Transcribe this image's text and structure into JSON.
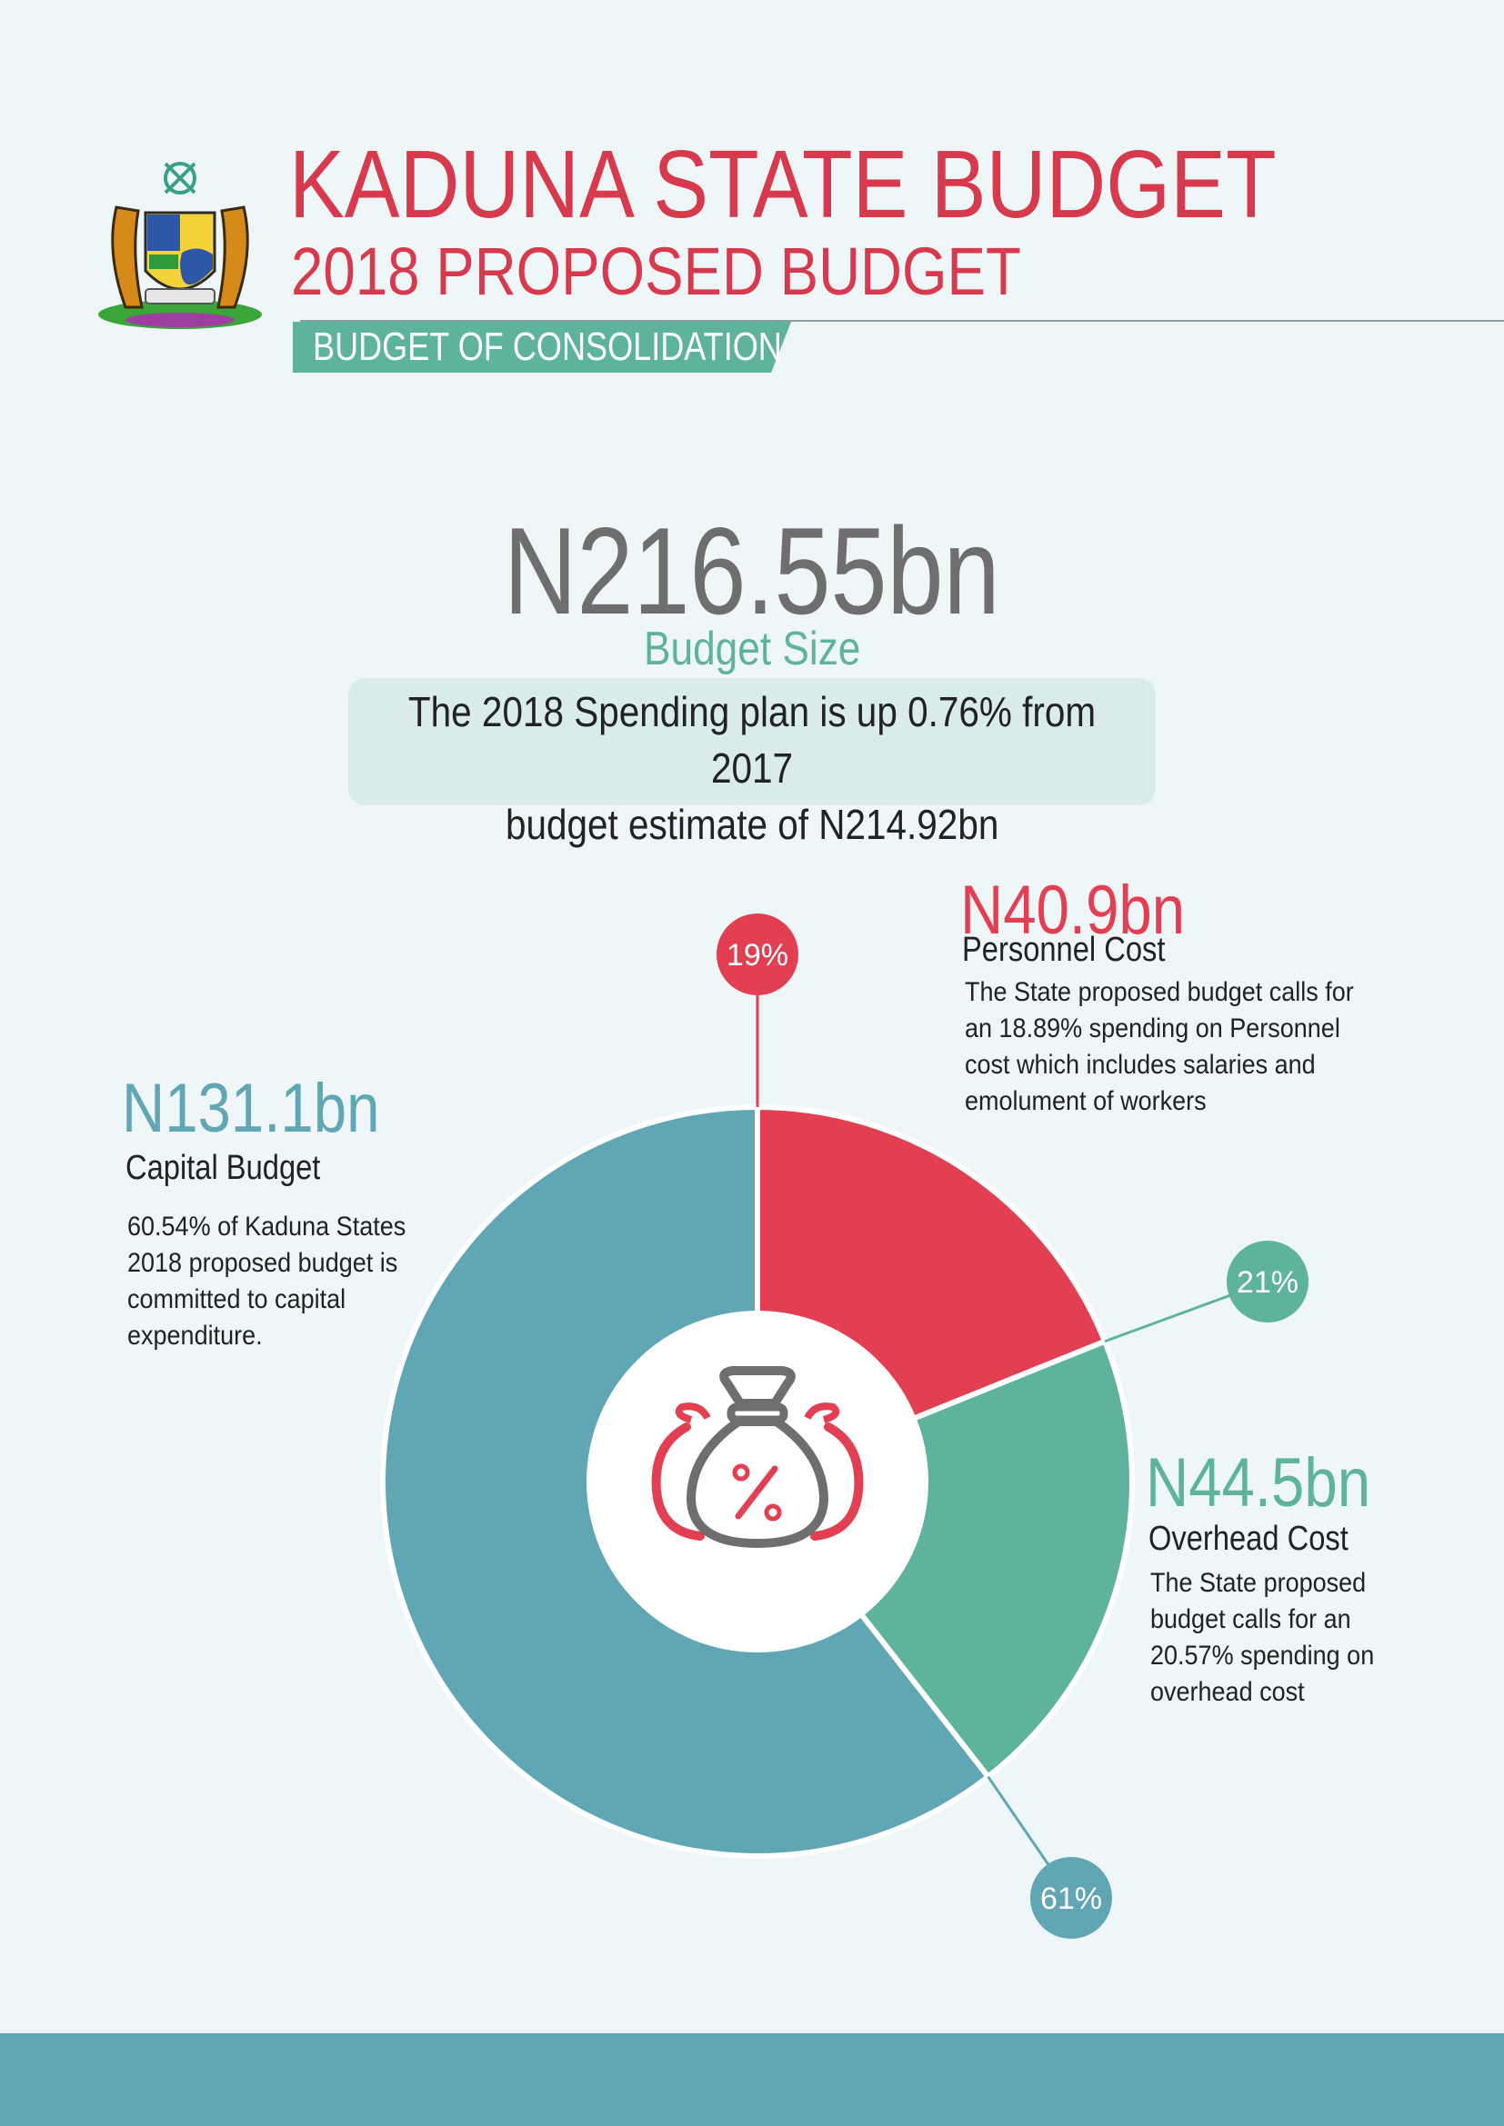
{
  "header": {
    "title": "KADUNA STATE BUDGET",
    "subtitle": "2018 PROPOSED BUDGET",
    "ribbon": "BUDGET OF CONSOLIDATION"
  },
  "summary": {
    "amount": "N216.55bn",
    "label": "Budget Size",
    "note_line1": "The 2018 Spending plan is up 0.76% from 2017",
    "note_line2": "budget estimate of N214.92bn"
  },
  "colors": {
    "personnel": "#e33f52",
    "overhead": "#5db39b",
    "capital": "#60a6b5",
    "title": "#d63a4c",
    "icon_gray": "#6e6e6e"
  },
  "chart_data": {
    "type": "pie",
    "categories": [
      "Personnel Cost",
      "Overhead Cost",
      "Capital Budget"
    ],
    "values": [
      40.9,
      44.5,
      131.1
    ],
    "percent_labels": [
      "19%",
      "21%",
      "61%"
    ],
    "amount_labels": [
      "N40.9bn",
      "N44.5bn",
      "N131.1bn"
    ],
    "descriptions": [
      [
        "The State proposed budget calls for",
        "an 18.89% spending on  Personnel",
        "cost which includes salaries and",
        "emolument of workers"
      ],
      [
        "The State proposed",
        "budget calls for an",
        "20.57% spending on",
        "overhead cost"
      ],
      [
        "60.54% of Kaduna States",
        "2018 proposed budget is",
        "committed to capital",
        "expenditure."
      ]
    ],
    "center_icon": "money-bags-percent-icon"
  }
}
